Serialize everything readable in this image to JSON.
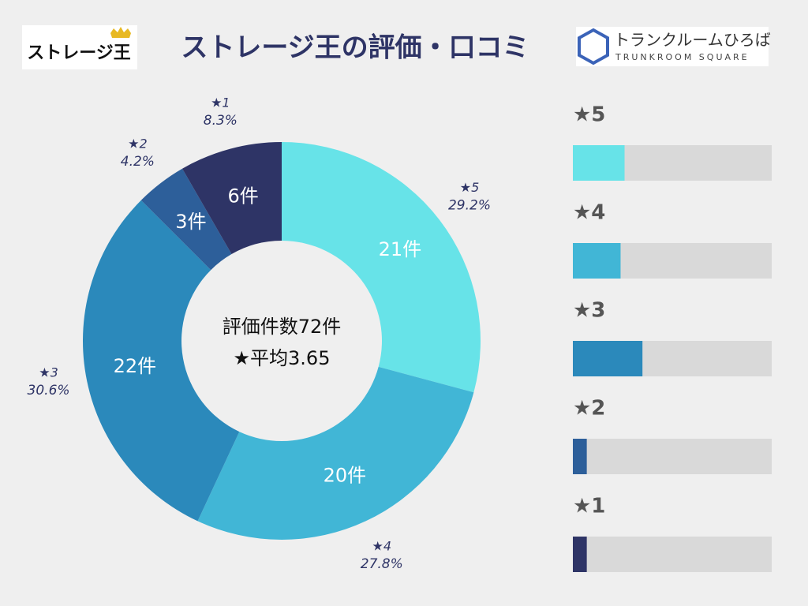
{
  "header": {
    "left_logo": "ストレージ王",
    "title": "ストレージ王の評価・口コミ",
    "right_logo": "トランクルームひろば",
    "right_logo_sub": "TRUNKROOM SQUARE"
  },
  "chart_data": [
    {
      "type": "donut",
      "categories": [
        "★5",
        "★4",
        "★3",
        "★2",
        "★1"
      ],
      "values": [
        21,
        20,
        22,
        3,
        6
      ],
      "value_labels": [
        "21件",
        "20件",
        "22件",
        "3件",
        "6件"
      ],
      "percent_labels": [
        "29.2%",
        "27.8%",
        "30.6%",
        "4.2%",
        "8.3%"
      ],
      "colors": [
        "#67e3e8",
        "#41b6d6",
        "#2b89bb",
        "#2d5f9a",
        "#2e3466"
      ],
      "center_text": [
        "評価件数72件",
        "★平均3.65"
      ]
    },
    {
      "type": "bar",
      "categories": [
        "★5",
        "★4",
        "★3",
        "★2",
        "★1"
      ],
      "values": [
        26,
        24,
        35,
        7,
        7
      ],
      "colors": [
        "#67e3e8",
        "#41b6d6",
        "#2b89bb",
        "#2d5f9a",
        "#2e3466"
      ],
      "track_color": "#d9d9d9",
      "xlim": [
        0,
        100
      ]
    }
  ]
}
